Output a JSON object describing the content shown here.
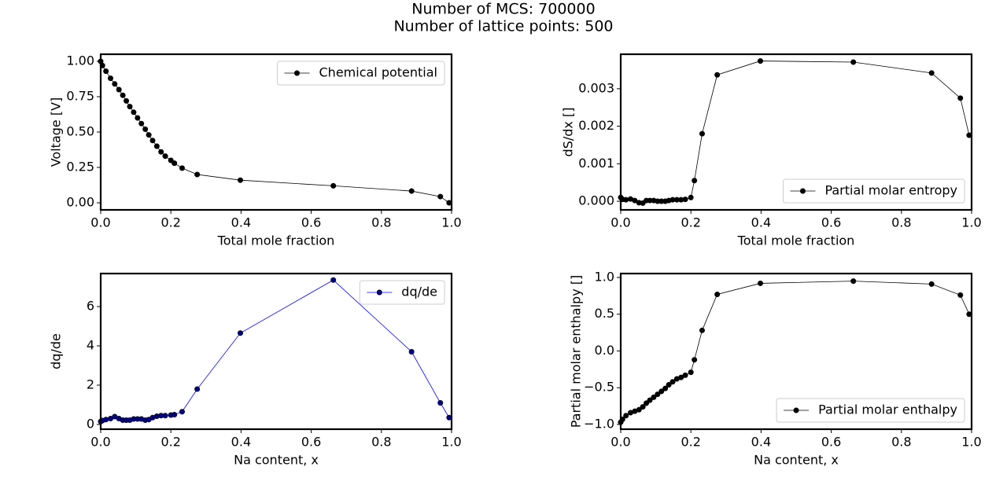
{
  "title": [
    "Number of MCS: 700000",
    "Number of lattice points: 500"
  ],
  "chart_data": [
    {
      "type": "line",
      "x_label": "Total mole fraction",
      "y_label": "Voltage [V]",
      "legend": "upper right",
      "x": [
        0,
        0.005,
        0.015,
        0.028,
        0.04,
        0.052,
        0.063,
        0.073,
        0.083,
        0.094,
        0.105,
        0.116,
        0.127,
        0.137,
        0.148,
        0.16,
        0.172,
        0.184,
        0.2,
        0.21,
        0.232,
        0.275,
        0.398,
        0.663,
        0.886,
        0.968,
        0.993
      ],
      "series": [
        {
          "name": "Chemical potential",
          "color": "#000000",
          "marker_color": "#000000",
          "values": [
            1.0,
            0.97,
            0.93,
            0.88,
            0.84,
            0.8,
            0.76,
            0.72,
            0.68,
            0.64,
            0.6,
            0.56,
            0.52,
            0.48,
            0.44,
            0.4,
            0.36,
            0.33,
            0.3,
            0.28,
            0.245,
            0.2,
            0.16,
            0.12,
            0.083,
            0.044,
            0.0
          ]
        }
      ],
      "xlim": [
        0,
        1
      ],
      "ylim": [
        -0.05,
        1.05
      ],
      "xticks": [
        {
          "value": 0,
          "label": "0.0"
        },
        {
          "value": 0.2,
          "label": "0.2"
        },
        {
          "value": 0.4,
          "label": "0.4"
        },
        {
          "value": 0.6,
          "label": "0.6"
        },
        {
          "value": 0.8,
          "label": "0.8"
        },
        {
          "value": 1,
          "label": "1.0"
        }
      ],
      "yticks": [
        {
          "value": 0,
          "label": "0.00"
        },
        {
          "value": 0.25,
          "label": "0.25"
        },
        {
          "value": 0.5,
          "label": "0.50"
        },
        {
          "value": 0.75,
          "label": "0.75"
        },
        {
          "value": 1,
          "label": "1.00"
        }
      ]
    },
    {
      "type": "line",
      "x_label": "Total mole fraction",
      "y_label": "dS/dx []",
      "legend": "lower right",
      "x": [
        0,
        0.005,
        0.015,
        0.028,
        0.04,
        0.052,
        0.063,
        0.073,
        0.083,
        0.094,
        0.105,
        0.116,
        0.127,
        0.137,
        0.148,
        0.16,
        0.172,
        0.184,
        0.2,
        0.21,
        0.232,
        0.275,
        0.398,
        0.663,
        0.886,
        0.968,
        0.993
      ],
      "series": [
        {
          "name": "Partial molar entropy",
          "color": "#000000",
          "marker_color": "#000000",
          "values": [
            0.0001,
            5e-05,
            4e-05,
            6e-05,
            2e-05,
            -4e-05,
            -5e-05,
            2e-05,
            2e-05,
            2e-05,
            0.0,
            0.0,
            0.0,
            2e-05,
            4e-05,
            4e-05,
            4e-05,
            5e-05,
            0.0001,
            0.00055,
            0.0018,
            0.00337,
            0.00374,
            0.00371,
            0.00342,
            0.00275,
            0.00176
          ]
        }
      ],
      "xlim": [
        0,
        1
      ],
      "ylim": [
        -0.00023,
        0.00392
      ],
      "xticks": [
        {
          "value": 0,
          "label": "0.0"
        },
        {
          "value": 0.2,
          "label": "0.2"
        },
        {
          "value": 0.4,
          "label": "0.4"
        },
        {
          "value": 0.6,
          "label": "0.6"
        },
        {
          "value": 0.8,
          "label": "0.8"
        },
        {
          "value": 1,
          "label": "1.0"
        }
      ],
      "yticks": [
        {
          "value": 0,
          "label": "0.000"
        },
        {
          "value": 0.001,
          "label": "0.001"
        },
        {
          "value": 0.002,
          "label": "0.002"
        },
        {
          "value": 0.003,
          "label": "0.003"
        }
      ]
    },
    {
      "type": "line",
      "x_label": "Na content, x",
      "y_label": "dq/de",
      "legend": "upper right",
      "x": [
        0,
        0.005,
        0.015,
        0.028,
        0.04,
        0.052,
        0.063,
        0.073,
        0.083,
        0.094,
        0.105,
        0.116,
        0.127,
        0.137,
        0.148,
        0.16,
        0.172,
        0.184,
        0.2,
        0.21,
        0.232,
        0.275,
        0.398,
        0.663,
        0.886,
        0.968,
        0.993
      ],
      "series": [
        {
          "name": "dq/de",
          "color": "#0000ff",
          "marker_color": "#00008b",
          "values": [
            0.15,
            0.2,
            0.25,
            0.3,
            0.4,
            0.3,
            0.22,
            0.22,
            0.22,
            0.28,
            0.28,
            0.28,
            0.22,
            0.25,
            0.35,
            0.42,
            0.45,
            0.45,
            0.48,
            0.5,
            0.65,
            1.8,
            4.65,
            7.35,
            3.7,
            1.1,
            0.35
          ]
        }
      ],
      "xlim": [
        0,
        1
      ],
      "ylim": [
        -0.24,
        7.68
      ],
      "xticks": [
        {
          "value": 0,
          "label": "0.0"
        },
        {
          "value": 0.2,
          "label": "0.2"
        },
        {
          "value": 0.4,
          "label": "0.4"
        },
        {
          "value": 0.6,
          "label": "0.6"
        },
        {
          "value": 0.8,
          "label": "0.8"
        },
        {
          "value": 1,
          "label": "1.0"
        }
      ],
      "yticks": [
        0,
        2,
        4,
        6
      ]
    },
    {
      "type": "line",
      "x_label": "Na content, x",
      "y_label": "Partial molar enthalpy []",
      "legend": "lower right",
      "x": [
        0,
        0.005,
        0.015,
        0.028,
        0.04,
        0.052,
        0.063,
        0.073,
        0.083,
        0.094,
        0.105,
        0.116,
        0.127,
        0.137,
        0.148,
        0.16,
        0.172,
        0.184,
        0.2,
        0.21,
        0.232,
        0.275,
        0.398,
        0.663,
        0.886,
        0.968,
        0.993
      ],
      "series": [
        {
          "name": "Partial molar enthalpy",
          "color": "#000000",
          "marker_color": "#000000",
          "values": [
            -0.97,
            -0.93,
            -0.88,
            -0.84,
            -0.82,
            -0.8,
            -0.76,
            -0.71,
            -0.67,
            -0.63,
            -0.59,
            -0.55,
            -0.51,
            -0.46,
            -0.42,
            -0.38,
            -0.36,
            -0.33,
            -0.29,
            -0.12,
            0.28,
            0.77,
            0.92,
            0.95,
            0.91,
            0.76,
            0.5
          ]
        }
      ],
      "xlim": [
        0,
        1
      ],
      "ylim": [
        -1.064,
        1.053
      ],
      "xticks": [
        {
          "value": 0,
          "label": "0.0"
        },
        {
          "value": 0.2,
          "label": "0.2"
        },
        {
          "value": 0.4,
          "label": "0.4"
        },
        {
          "value": 0.6,
          "label": "0.6"
        },
        {
          "value": 0.8,
          "label": "0.8"
        },
        {
          "value": 1,
          "label": "1.0"
        }
      ],
      "yticks": [
        {
          "value": -1,
          "label": "−1.0"
        },
        {
          "value": -0.5,
          "label": "−0.5"
        },
        {
          "value": 0,
          "label": "0.0"
        },
        {
          "value": 0.5,
          "label": "0.5"
        },
        {
          "value": 1,
          "label": "1.0"
        }
      ]
    }
  ]
}
